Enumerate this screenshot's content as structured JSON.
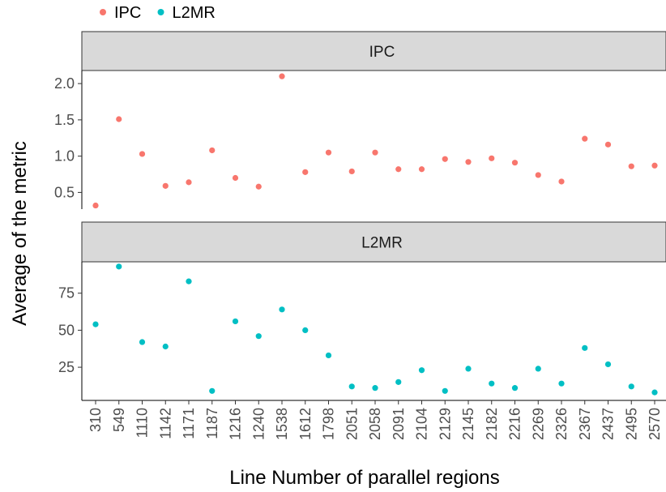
{
  "chart_data": {
    "type": "scatter",
    "xlabel": "Line Number of parallel regions",
    "ylabel": "Average of the metric",
    "categories": [
      "310",
      "549",
      "1110",
      "1142",
      "1171",
      "1187",
      "1216",
      "1240",
      "1538",
      "1612",
      "1798",
      "2051",
      "2058",
      "2091",
      "2104",
      "2129",
      "2145",
      "2182",
      "2216",
      "2269",
      "2326",
      "2367",
      "2437",
      "2495",
      "2570"
    ],
    "legend": {
      "placement": "top-left",
      "entries": [
        {
          "name": "IPC",
          "color": "#f8766d"
        },
        {
          "name": "L2MR",
          "color": "#00bfc4"
        }
      ]
    },
    "facets": [
      {
        "label": "IPC",
        "series": "IPC",
        "color": "#f8766d",
        "yticks": [
          0.5,
          1.0,
          1.5,
          2.0
        ],
        "ytick_labels": [
          "0.5",
          "1.0",
          "1.5",
          "2.0"
        ],
        "ylim": [
          0.27,
          2.18
        ],
        "values": [
          0.32,
          1.51,
          1.03,
          0.59,
          0.64,
          1.08,
          0.7,
          0.58,
          2.1,
          0.78,
          1.05,
          0.79,
          1.05,
          0.82,
          0.82,
          0.96,
          0.92,
          0.97,
          0.91,
          0.74,
          0.65,
          1.24,
          1.16,
          0.86,
          0.87
        ]
      },
      {
        "label": "L2MR",
        "series": "L2MR",
        "color": "#00bfc4",
        "yticks": [
          25,
          50,
          75
        ],
        "ytick_labels": [
          "25",
          "50",
          "75"
        ],
        "ylim": [
          2.6,
          96.2
        ],
        "values": [
          54,
          93,
          42,
          39,
          83,
          9,
          56,
          46,
          64,
          50,
          33,
          12,
          11,
          15,
          23,
          9,
          24,
          14,
          11,
          24,
          14,
          38,
          27,
          12,
          8
        ]
      }
    ],
    "grid": false
  }
}
